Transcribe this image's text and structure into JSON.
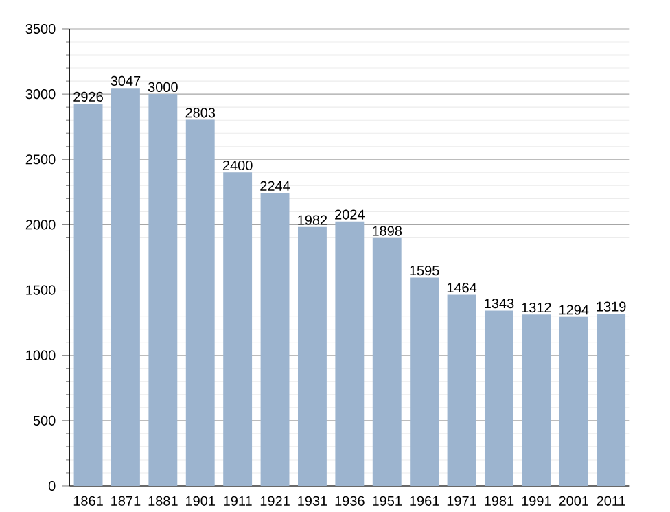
{
  "chart_data": {
    "type": "bar",
    "categories": [
      "1861",
      "1871",
      "1881",
      "1901",
      "1911",
      "1921",
      "1931",
      "1936",
      "1951",
      "1961",
      "1971",
      "1981",
      "1991",
      "2001",
      "2011"
    ],
    "values": [
      2926,
      3047,
      3000,
      2803,
      2400,
      2244,
      1982,
      2024,
      1898,
      1595,
      1464,
      1343,
      1312,
      1294,
      1319
    ],
    "color": "#9cb4cf",
    "ylim": [
      0,
      3500
    ],
    "yticks": [
      0,
      500,
      1000,
      1500,
      2000,
      2500,
      3000,
      3500
    ],
    "grid": "y",
    "data_labels": true
  }
}
